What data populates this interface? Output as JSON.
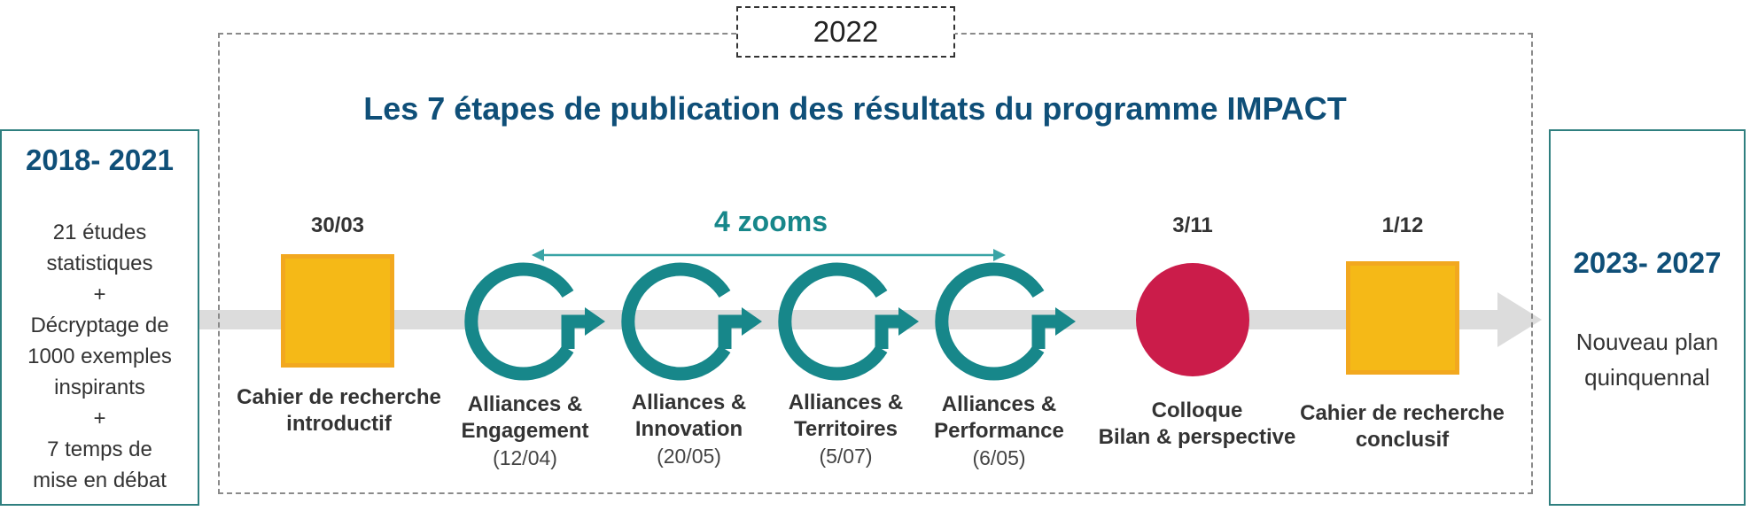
{
  "colors": {
    "teal": "#17878a",
    "navy": "#0f4f78",
    "yellow": "#f5b917",
    "crimson": "#cb1c4a",
    "arrow_gray": "#dcdcdc"
  },
  "left_panel": {
    "title": "2018- 2021",
    "lines": [
      "21 études",
      "statistiques",
      "+",
      "Décryptage de",
      "1000 exemples",
      "inspirants",
      "+",
      "7 temps de",
      "mise en débat"
    ]
  },
  "right_panel": {
    "title": "2023- 2027",
    "lines": [
      "Nouveau plan",
      "quinquennal"
    ]
  },
  "year_tag": "2022",
  "main_title": "Les 7 étapes de publication des résultats du  programme IMPACT",
  "zooms_label": "4 zooms",
  "steps": [
    {
      "date": "30/03",
      "line1": "Cahier de recherche",
      "line2": "introductif",
      "icon": "yellow-square"
    },
    {
      "line1": "Alliances &",
      "line2": "Engagement",
      "sub": "(12/04)",
      "icon": "cycle-arrow-icon"
    },
    {
      "line1": "Alliances &",
      "line2": "Innovation",
      "sub": "(20/05)",
      "icon": "cycle-arrow-icon"
    },
    {
      "line1": "Alliances &",
      "line2": "Territoires",
      "sub": "(5/07)",
      "icon": "cycle-arrow-icon"
    },
    {
      "line1": "Alliances &",
      "line2": "Performance",
      "sub": "(6/05)",
      "icon": "cycle-arrow-icon"
    },
    {
      "date": "3/11",
      "line1": "Colloque",
      "line2": "Bilan & perspective",
      "icon": "red-circle"
    },
    {
      "date": "1/12",
      "line1": "Cahier de recherche",
      "line2": "conclusif",
      "icon": "yellow-square"
    }
  ]
}
